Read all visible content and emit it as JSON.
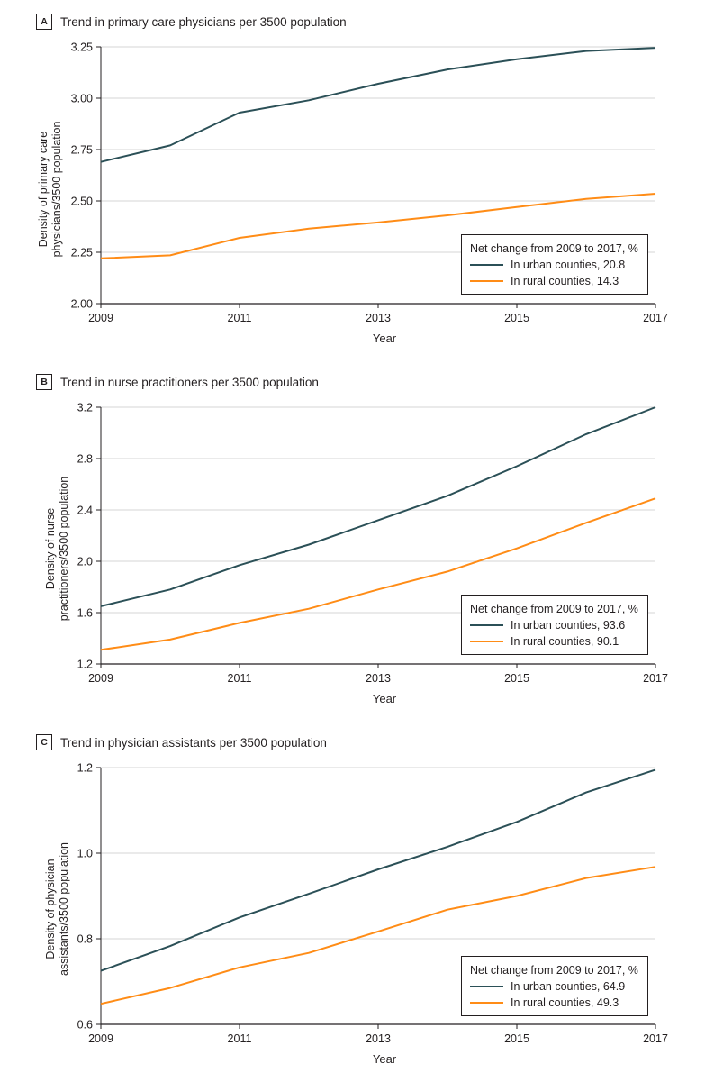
{
  "colors": {
    "urban": "#2b5057",
    "rural": "#ff8c16",
    "grid": "#d4d4d4",
    "axis": "#231f20"
  },
  "chart_data": [
    {
      "type": "line",
      "panel_label": "A",
      "title": "Trend in primary care physicians per 3500 population",
      "xlabel": "Year",
      "ylabel": "Density of primary care physicians/3500 population",
      "ylabel_lines": [
        "Density of primary care",
        "physicians/3500 population"
      ],
      "x": [
        2009,
        2010,
        2011,
        2012,
        2013,
        2014,
        2015,
        2016,
        2017
      ],
      "xlim": [
        2009,
        2017
      ],
      "xticks": [
        "2009",
        "2011",
        "2013",
        "2015",
        "2017"
      ],
      "ylim": [
        2.0,
        3.25
      ],
      "yticks": [
        "2.00",
        "2.25",
        "2.50",
        "2.75",
        "3.00",
        "3.25"
      ],
      "legend_title": "Net change from 2009 to 2017, %",
      "series": [
        {
          "name": "In urban counties, 20.8",
          "key": "urban",
          "values": [
            2.69,
            2.77,
            2.93,
            2.99,
            3.07,
            3.14,
            3.19,
            3.23,
            3.245
          ]
        },
        {
          "name": "In rural counties, 14.3",
          "key": "rural",
          "values": [
            2.22,
            2.235,
            2.32,
            2.365,
            2.395,
            2.43,
            2.47,
            2.51,
            2.535
          ]
        }
      ]
    },
    {
      "type": "line",
      "panel_label": "B",
      "title": "Trend in nurse practitioners per 3500 population",
      "xlabel": "Year",
      "ylabel": "Density of nurse practitioners/3500 population",
      "ylabel_lines": [
        "Density of nurse",
        "practitioners/3500 population"
      ],
      "x": [
        2009,
        2010,
        2011,
        2012,
        2013,
        2014,
        2015,
        2016,
        2017
      ],
      "xlim": [
        2009,
        2017
      ],
      "xticks": [
        "2009",
        "2011",
        "2013",
        "2015",
        "2017"
      ],
      "ylim": [
        1.2,
        3.2
      ],
      "yticks": [
        "1.2",
        "1.6",
        "2.0",
        "2.4",
        "2.8",
        "3.2"
      ],
      "legend_title": "Net change from 2009 to 2017, %",
      "series": [
        {
          "name": "In urban counties, 93.6",
          "key": "urban",
          "values": [
            1.65,
            1.78,
            1.97,
            2.13,
            2.32,
            2.51,
            2.74,
            2.99,
            3.2
          ]
        },
        {
          "name": "In rural counties, 90.1",
          "key": "rural",
          "values": [
            1.31,
            1.39,
            1.52,
            1.63,
            1.78,
            1.92,
            2.1,
            2.3,
            2.49
          ]
        }
      ]
    },
    {
      "type": "line",
      "panel_label": "C",
      "title": "Trend in physician assistants per 3500 population",
      "xlabel": "Year",
      "ylabel": "Density of physician assistants/3500 population",
      "ylabel_lines": [
        "Density of physician",
        "assistants/3500 population"
      ],
      "x": [
        2009,
        2010,
        2011,
        2012,
        2013,
        2014,
        2015,
        2016,
        2017
      ],
      "xlim": [
        2009,
        2017
      ],
      "xticks": [
        "2009",
        "2011",
        "2013",
        "2015",
        "2017"
      ],
      "ylim": [
        0.6,
        1.2
      ],
      "yticks": [
        "0.6",
        "0.8",
        "1.0",
        "1.2"
      ],
      "legend_title": "Net change from 2009 to 2017, %",
      "series": [
        {
          "name": "In urban counties, 64.9",
          "key": "urban",
          "values": [
            0.725,
            0.783,
            0.85,
            0.905,
            0.962,
            1.015,
            1.073,
            1.142,
            1.195
          ]
        },
        {
          "name": "In rural counties, 49.3",
          "key": "rural",
          "values": [
            0.648,
            0.685,
            0.733,
            0.767,
            0.817,
            0.868,
            0.9,
            0.942,
            0.968
          ]
        }
      ]
    }
  ]
}
